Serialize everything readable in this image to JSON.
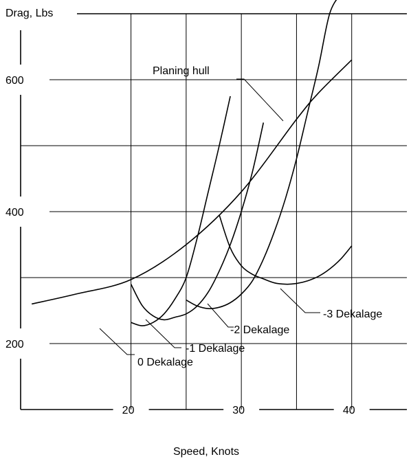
{
  "chart_data": {
    "type": "line",
    "xlabel": "Speed, Knots",
    "ylabel": "Drag, Lbs",
    "xlim": [
      10,
      45
    ],
    "ylim": [
      100,
      700
    ],
    "x_ticks": [
      20,
      30,
      40
    ],
    "x_tick_labels": [
      "20",
      "30",
      "40"
    ],
    "y_ticks": [
      200,
      400,
      600
    ],
    "y_tick_labels": [
      "200",
      "400",
      "600"
    ],
    "grid_x": [
      20,
      25,
      30,
      35,
      40
    ],
    "grid_y": [
      300,
      500
    ],
    "grid": true,
    "series": [
      {
        "name": "Planing hull",
        "x": [
          11,
          15,
          20,
          25,
          30,
          35,
          37,
          40
        ],
        "y": [
          260,
          275,
          297,
          350,
          430,
          540,
          580,
          630
        ]
      },
      {
        "name": "0 Dekalage",
        "x": [
          20,
          21,
          22,
          23,
          24,
          25,
          26,
          27,
          28,
          29
        ],
        "y": [
          232,
          227,
          232,
          245,
          268,
          300,
          360,
          430,
          500,
          575
        ]
      },
      {
        "name": "-1 Dekalage",
        "x": [
          20,
          21,
          22,
          23,
          24,
          25,
          26,
          27,
          28,
          29,
          30,
          31,
          32
        ],
        "y": [
          290,
          258,
          242,
          236,
          240,
          245,
          257,
          278,
          310,
          350,
          400,
          460,
          535
        ]
      },
      {
        "name": "-2 Dekalage",
        "x": [
          25,
          26,
          27,
          28,
          29,
          30,
          31,
          32,
          33,
          34,
          35,
          36,
          37,
          38,
          39
        ],
        "y": [
          266,
          257,
          253,
          255,
          262,
          275,
          295,
          328,
          370,
          420,
          480,
          550,
          620,
          700,
          730
        ]
      },
      {
        "name": "-3 Dekalage",
        "x": [
          28,
          29,
          30,
          31,
          32,
          33,
          34,
          35,
          36,
          37,
          38,
          39,
          40
        ],
        "y": [
          395,
          345,
          318,
          305,
          298,
          292,
          290,
          291,
          295,
          302,
          313,
          328,
          348
        ]
      }
    ],
    "annotations": [
      {
        "text": "Planing hull",
        "target_series": "Planing hull"
      },
      {
        "text": "0 Dekalage",
        "target_series": "0 Dekalage"
      },
      {
        "text": "-1 Dekalage",
        "target_series": "-1 Dekalage"
      },
      {
        "text": "-2 Dekalage",
        "target_series": "-2 Dekalage"
      },
      {
        "text": "-3 Dekalage",
        "target_series": "-3 Dekalage"
      }
    ],
    "colors": {
      "line": "#000000",
      "grid": "#000000",
      "background": "#ffffff"
    }
  }
}
